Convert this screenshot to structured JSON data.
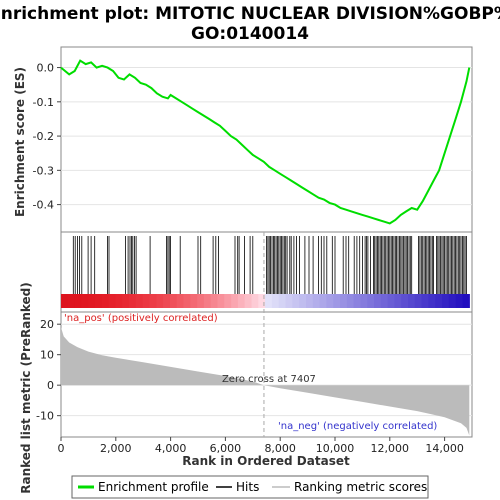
{
  "chart_data": {
    "type": "line",
    "title_line1": "Enrichment plot: MITOTIC NUCLEAR DIVISION%GOBP%",
    "title_line2": "GO:0140014",
    "es_panel": {
      "ylabel": "Enrichment score (ES)",
      "ylim": [
        -0.48,
        0.06
      ],
      "yticks": [
        0.0,
        -0.1,
        -0.2,
        -0.3,
        -0.4
      ],
      "ytick_labels": [
        "0.0",
        "-0.1",
        "-0.2",
        "-0.3",
        "-0.4"
      ],
      "series_color": "#00dd00",
      "x": [
        0,
        300,
        500,
        700,
        900,
        1100,
        1300,
        1500,
        1700,
        1900,
        2100,
        2300,
        2500,
        2700,
        2900,
        3100,
        3300,
        3500,
        3700,
        3900,
        4000,
        4200,
        4400,
        4600,
        4800,
        5000,
        5200,
        5400,
        5600,
        5800,
        6000,
        6200,
        6400,
        6600,
        6800,
        7000,
        7200,
        7400,
        7600,
        7800,
        8000,
        8200,
        8400,
        8600,
        8800,
        9000,
        9200,
        9400,
        9600,
        9800,
        10000,
        10200,
        10400,
        10600,
        10800,
        11000,
        11200,
        11400,
        11600,
        11800,
        12000,
        12200,
        12400,
        12600,
        12800,
        13000,
        13200,
        13400,
        13600,
        13800,
        14000,
        14200,
        14400,
        14600,
        14800,
        14900
      ],
      "y": [
        0.0,
        -0.02,
        -0.01,
        0.02,
        0.01,
        0.015,
        0.0,
        0.005,
        0.0,
        -0.01,
        -0.03,
        -0.035,
        -0.02,
        -0.03,
        -0.045,
        -0.05,
        -0.06,
        -0.075,
        -0.085,
        -0.09,
        -0.08,
        -0.09,
        -0.1,
        -0.11,
        -0.12,
        -0.13,
        -0.14,
        -0.15,
        -0.16,
        -0.17,
        -0.185,
        -0.2,
        -0.21,
        -0.225,
        -0.24,
        -0.255,
        -0.265,
        -0.275,
        -0.29,
        -0.3,
        -0.31,
        -0.32,
        -0.33,
        -0.34,
        -0.35,
        -0.36,
        -0.37,
        -0.38,
        -0.385,
        -0.395,
        -0.4,
        -0.41,
        -0.415,
        -0.42,
        -0.425,
        -0.43,
        -0.435,
        -0.44,
        -0.445,
        -0.45,
        -0.455,
        -0.445,
        -0.43,
        -0.42,
        -0.41,
        -0.415,
        -0.39,
        -0.36,
        -0.33,
        -0.3,
        -0.25,
        -0.2,
        -0.15,
        -0.1,
        -0.04,
        0.0
      ]
    },
    "hits": [
      450,
      520,
      600,
      680,
      760,
      990,
      1100,
      1230,
      1700,
      1750,
      2350,
      2450,
      2520,
      2570,
      2620,
      2680,
      2740,
      3250,
      3850,
      3900,
      3950,
      4000,
      4350,
      5000,
      5100,
      5550,
      5650,
      5750,
      6350,
      6450,
      6500,
      6700,
      6900,
      7000,
      7500,
      7550,
      7600,
      7650,
      7700,
      7750,
      7800,
      7850,
      7900,
      7950,
      8000,
      8050,
      8100,
      8150,
      8200,
      8250,
      8350,
      8400,
      8500,
      8600,
      8700,
      8900,
      9050,
      9200,
      9400,
      9500,
      9600,
      9700,
      9900,
      10000,
      10300,
      10400,
      10500,
      10700,
      10800,
      10900,
      11000,
      11100,
      11150,
      11200,
      11300,
      11400,
      11450,
      11500,
      11550,
      11600,
      11650,
      11700,
      11750,
      11800,
      11850,
      11900,
      11950,
      12000,
      12050,
      12100,
      12150,
      12200,
      12250,
      12300,
      12350,
      12400,
      12450,
      12500,
      12550,
      12600,
      12650,
      12700,
      12750,
      12800,
      13050,
      13100,
      13150,
      13200,
      13250,
      13300,
      13350,
      13400,
      13450,
      13500,
      13550,
      13600,
      13700,
      13750,
      13800,
      13850,
      13900,
      13950,
      14000,
      14050,
      14100,
      14150,
      14200,
      14250,
      14300,
      14350,
      14400,
      14450,
      14500,
      14550,
      14600,
      14650,
      14700,
      14750,
      14800
    ],
    "metric_panel": {
      "ylabel": "Ranked list metric (PreRanked)",
      "ylim": [
        -17,
        24
      ],
      "yticks": [
        20,
        10,
        0,
        -10
      ],
      "ytick_labels": [
        "20",
        "10",
        "0",
        "-10"
      ],
      "fill_color": "#bbbbbb",
      "x": [
        0,
        100,
        300,
        600,
        1000,
        1500,
        2000,
        3000,
        4000,
        5000,
        6000,
        7000,
        7407,
        8000,
        9000,
        10000,
        11000,
        12000,
        13000,
        13500,
        14000,
        14300,
        14600,
        14800,
        14900
      ],
      "y": [
        19,
        16,
        14,
        12.5,
        11,
        9.8,
        9,
        7.5,
        6,
        4.5,
        3,
        1.2,
        0,
        -1,
        -2.5,
        -4,
        -5.5,
        -7,
        -8.5,
        -9.5,
        -10.5,
        -11.5,
        -12.5,
        -14,
        -16.5
      ]
    },
    "annotations": {
      "na_pos": "'na_pos' (positively correlated)",
      "na_neg": "'na_neg' (negatively correlated)",
      "zero_cross": "Zero cross at 7407",
      "zero_cross_x": 7407
    },
    "xlabel": "Rank in Ordered Dataset",
    "xlim": [
      0,
      15000
    ],
    "xticks": [
      0,
      2000,
      4000,
      6000,
      8000,
      10000,
      12000,
      14000
    ],
    "xtick_labels": [
      "0",
      "2,000",
      "4,000",
      "6,000",
      "8,000",
      "10,000",
      "12,000",
      "14,000"
    ],
    "n_genes": 14900,
    "legend": {
      "placement": "bottom",
      "items": [
        {
          "label": "Enrichment profile",
          "color": "#00dd00"
        },
        {
          "label": "Hits",
          "color": "#000000"
        },
        {
          "label": "Ranking metric scores",
          "color": "#bbbbbb"
        }
      ]
    }
  }
}
